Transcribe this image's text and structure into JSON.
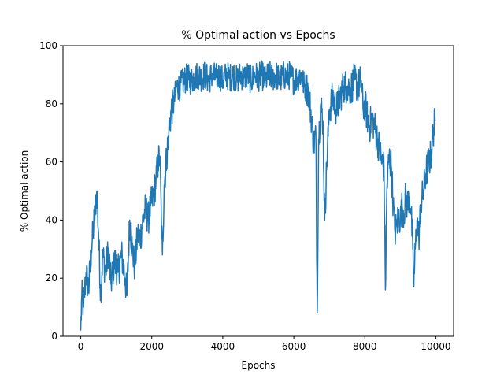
{
  "chart_data": {
    "type": "line",
    "title": "% Optimal action vs Epochs",
    "xlabel": "Epochs",
    "ylabel": "% Optimal action",
    "xlim": [
      -500,
      10500
    ],
    "ylim": [
      0,
      100
    ],
    "xticks": [
      0,
      2000,
      4000,
      6000,
      8000,
      10000
    ],
    "yticks": [
      0,
      20,
      40,
      60,
      80,
      100
    ],
    "grid": false,
    "line_color": "#1f77b4",
    "series": [
      {
        "points": [
          [
            0,
            2
          ],
          [
            30,
            14
          ],
          [
            80,
            10
          ],
          [
            150,
            22
          ],
          [
            220,
            16
          ],
          [
            300,
            30
          ],
          [
            380,
            40
          ],
          [
            450,
            50
          ],
          [
            500,
            36
          ],
          [
            560,
            14
          ],
          [
            620,
            28
          ],
          [
            700,
            22
          ],
          [
            780,
            30
          ],
          [
            850,
            18
          ],
          [
            950,
            26
          ],
          [
            1050,
            22
          ],
          [
            1150,
            28
          ],
          [
            1250,
            20
          ],
          [
            1300,
            14
          ],
          [
            1380,
            40
          ],
          [
            1450,
            30
          ],
          [
            1520,
            24
          ],
          [
            1600,
            35
          ],
          [
            1680,
            34
          ],
          [
            1750,
            40
          ],
          [
            1830,
            44
          ],
          [
            1900,
            40
          ],
          [
            1970,
            45
          ],
          [
            2050,
            48
          ],
          [
            2120,
            54
          ],
          [
            2180,
            60
          ],
          [
            2230,
            62
          ],
          [
            2270,
            40
          ],
          [
            2300,
            28
          ],
          [
            2350,
            52
          ],
          [
            2420,
            62
          ],
          [
            2480,
            70
          ],
          [
            2550,
            78
          ],
          [
            2620,
            80
          ],
          [
            2700,
            86
          ],
          [
            2800,
            86
          ],
          [
            2900,
            88
          ],
          [
            3000,
            89
          ],
          [
            3100,
            88
          ],
          [
            3200,
            89
          ],
          [
            3300,
            90
          ],
          [
            3400,
            89
          ],
          [
            3500,
            90
          ],
          [
            3600,
            88
          ],
          [
            3700,
            90
          ],
          [
            3800,
            89
          ],
          [
            3900,
            90
          ],
          [
            4000,
            88
          ],
          [
            4100,
            90
          ],
          [
            4200,
            89
          ],
          [
            4300,
            90
          ],
          [
            4400,
            88
          ],
          [
            4500,
            90
          ],
          [
            4600,
            89
          ],
          [
            4700,
            90
          ],
          [
            4800,
            88
          ],
          [
            4900,
            90
          ],
          [
            5000,
            89
          ],
          [
            5100,
            90
          ],
          [
            5200,
            88
          ],
          [
            5300,
            90
          ],
          [
            5400,
            89
          ],
          [
            5500,
            90
          ],
          [
            5600,
            88
          ],
          [
            5700,
            90
          ],
          [
            5800,
            89
          ],
          [
            5900,
            90
          ],
          [
            6000,
            88
          ],
          [
            6100,
            89
          ],
          [
            6200,
            90
          ],
          [
            6300,
            86
          ],
          [
            6400,
            85
          ],
          [
            6450,
            80
          ],
          [
            6500,
            75
          ],
          [
            6560,
            66
          ],
          [
            6620,
            70
          ],
          [
            6660,
            8
          ],
          [
            6700,
            68
          ],
          [
            6760,
            80
          ],
          [
            6820,
            74
          ],
          [
            6870,
            40
          ],
          [
            6930,
            60
          ],
          [
            7000,
            78
          ],
          [
            7100,
            82
          ],
          [
            7200,
            78
          ],
          [
            7300,
            82
          ],
          [
            7400,
            86
          ],
          [
            7500,
            86
          ],
          [
            7600,
            85
          ],
          [
            7700,
            88
          ],
          [
            7800,
            86
          ],
          [
            7900,
            88
          ],
          [
            7950,
            78
          ],
          [
            8000,
            80
          ],
          [
            8060,
            76
          ],
          [
            8130,
            72
          ],
          [
            8200,
            75
          ],
          [
            8280,
            72
          ],
          [
            8350,
            68
          ],
          [
            8420,
            64
          ],
          [
            8480,
            60
          ],
          [
            8540,
            58
          ],
          [
            8580,
            16
          ],
          [
            8620,
            50
          ],
          [
            8680,
            62
          ],
          [
            8750,
            58
          ],
          [
            8800,
            45
          ],
          [
            8850,
            36
          ],
          [
            8900,
            38
          ],
          [
            8950,
            42
          ],
          [
            9000,
            40
          ],
          [
            9050,
            45
          ],
          [
            9100,
            42
          ],
          [
            9150,
            48
          ],
          [
            9200,
            45
          ],
          [
            9250,
            48
          ],
          [
            9300,
            44
          ],
          [
            9350,
            30
          ],
          [
            9380,
            17
          ],
          [
            9420,
            30
          ],
          [
            9470,
            40
          ],
          [
            9520,
            34
          ],
          [
            9580,
            45
          ],
          [
            9650,
            50
          ],
          [
            9720,
            56
          ],
          [
            9800,
            60
          ],
          [
            9860,
            62
          ],
          [
            9920,
            70
          ],
          [
            9980,
            74
          ]
        ]
      }
    ]
  }
}
